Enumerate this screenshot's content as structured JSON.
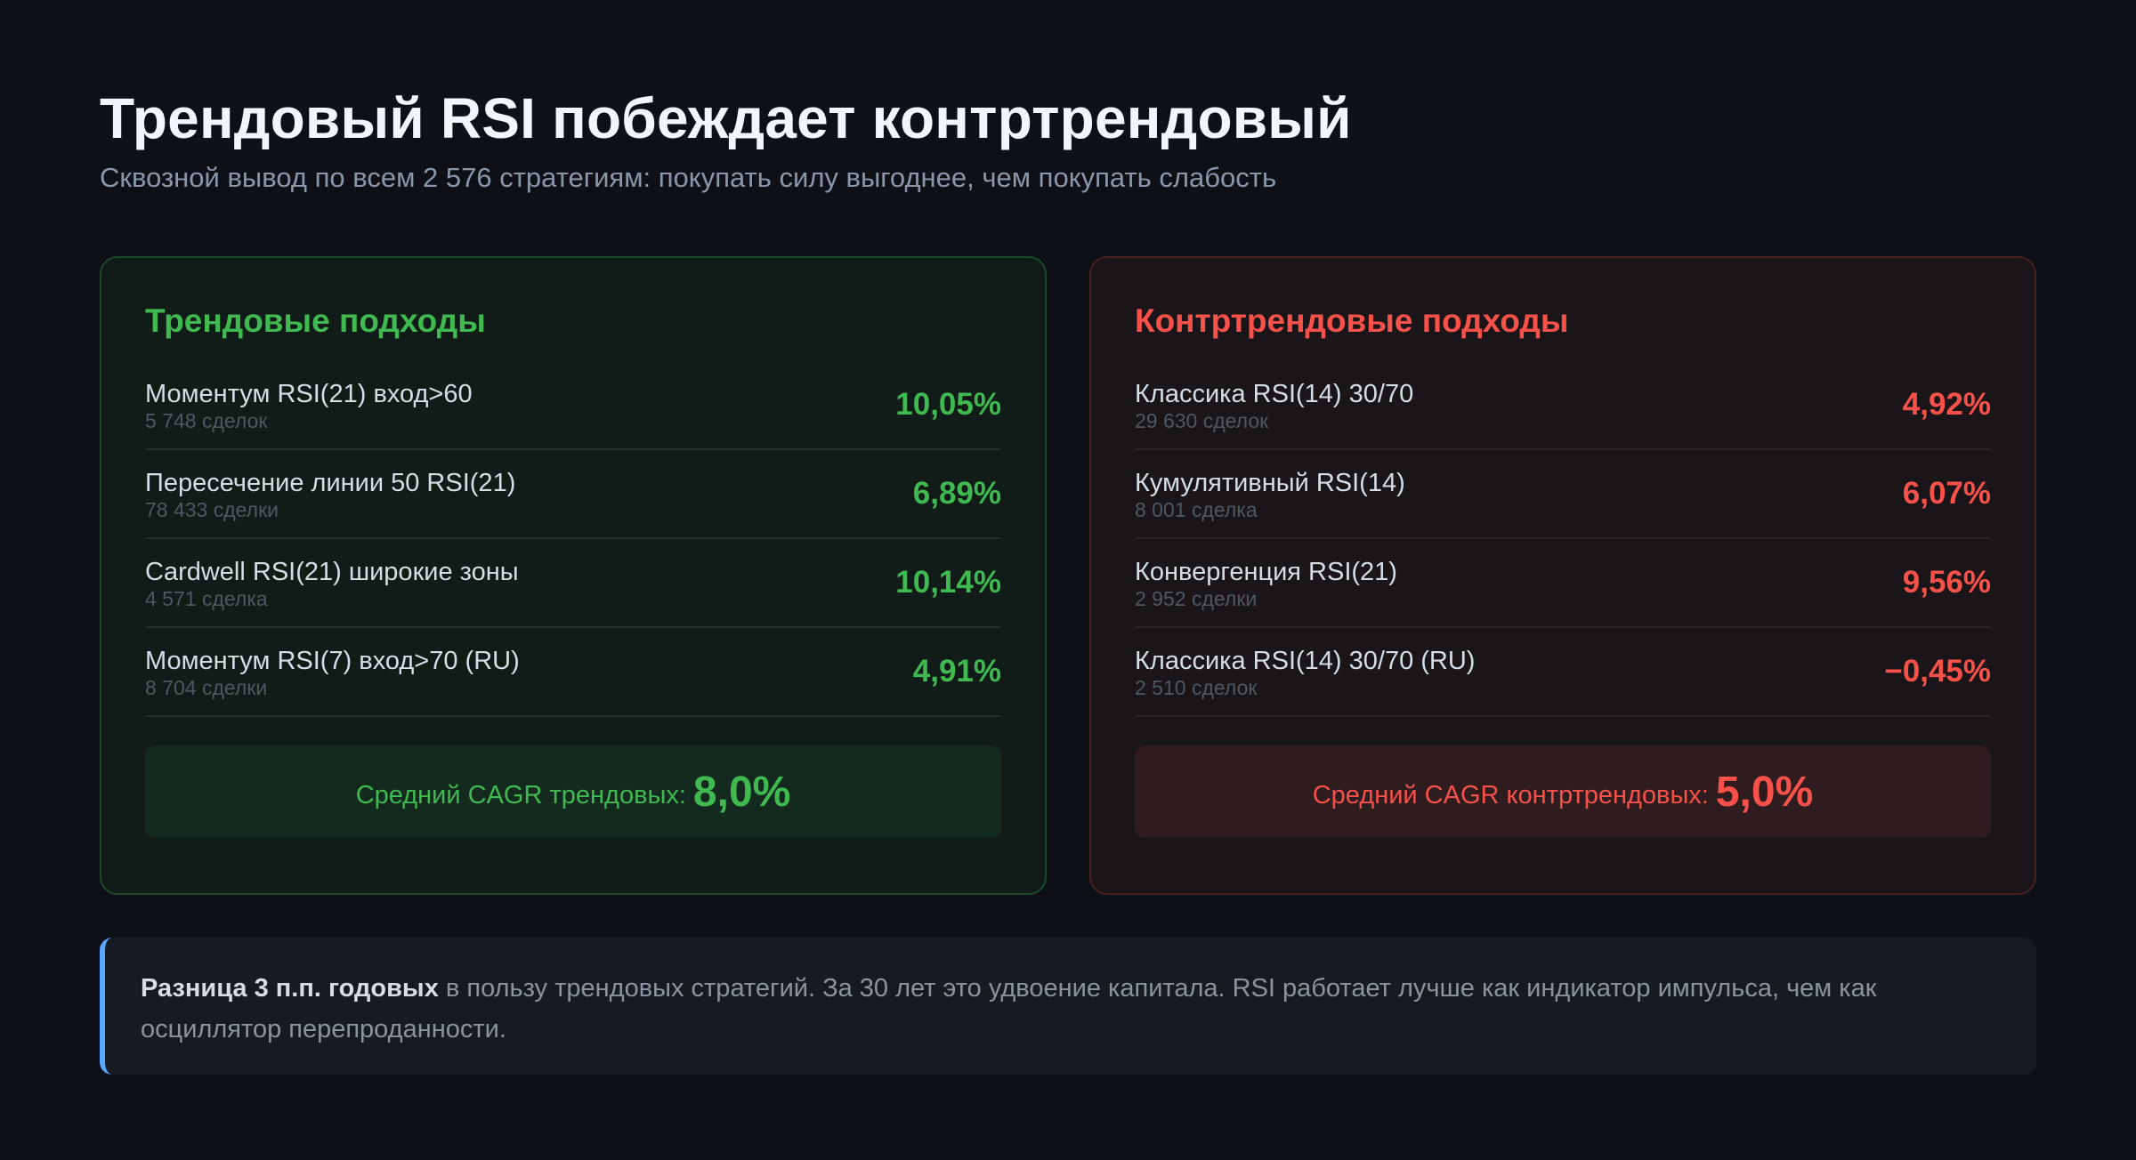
{
  "header": {
    "title": "Трендовый RSI побеждает контртрендовый",
    "subtitle": "Сквозной вывод по всем 2 576 стратегиям: покупать силу выгоднее, чем покупать слабость"
  },
  "colors": {
    "background": "#0d1117",
    "trend_accent": "#3fb950",
    "counter_accent": "#f85149",
    "note_accent": "#58a6ff"
  },
  "trend_panel": {
    "title": "Трендовые подходы",
    "rows": [
      {
        "name": "Моментум RSI(21) вход>60",
        "trades": "5 748 сделок",
        "cagr": "10,05%"
      },
      {
        "name": "Пересечение линии 50 RSI(21)",
        "trades": "78 433 сделки",
        "cagr": "6,89%"
      },
      {
        "name": "Cardwell RSI(21) широкие зоны",
        "trades": "4 571 сделка",
        "cagr": "10,14%"
      },
      {
        "name": "Моментум RSI(7) вход>70 (RU)",
        "trades": "8 704 сделки",
        "cagr": "4,91%"
      }
    ],
    "summary_label": "Средний CAGR трендовых:",
    "summary_value": "8,0%"
  },
  "counter_panel": {
    "title": "Контртрендовые подходы",
    "rows": [
      {
        "name": "Классика RSI(14) 30/70",
        "trades": "29 630 сделок",
        "cagr": "4,92%"
      },
      {
        "name": "Кумулятивный RSI(14)",
        "trades": "8 001 сделка",
        "cagr": "6,07%"
      },
      {
        "name": "Конвергенция RSI(21)",
        "trades": "2 952 сделки",
        "cagr": "9,56%"
      },
      {
        "name": "Классика RSI(14) 30/70 (RU)",
        "trades": "2 510 сделок",
        "cagr": "−0,45%"
      }
    ],
    "summary_label": "Средний CAGR контртрендовых:",
    "summary_value": "5,0%"
  },
  "note": {
    "strong": "Разница 3 п.п. годовых",
    "text": " в пользу трендовых стратегий. За 30 лет это удвоение капитала. RSI работает лучше как индикатор импульса, чем как осциллятор перепроданности."
  }
}
